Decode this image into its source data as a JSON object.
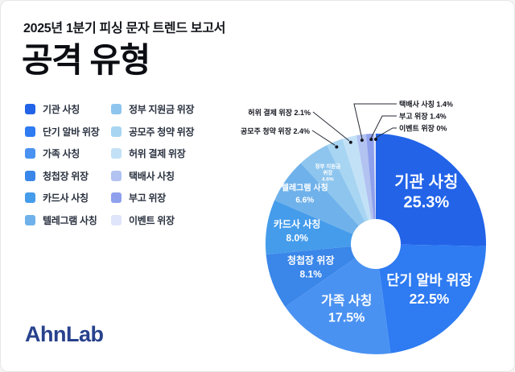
{
  "header": {
    "report_title": "2025년 1분기 피싱 문자 트렌드 보고서",
    "page_title": "공격 유형"
  },
  "footer": {
    "logo_text": "AhnLab"
  },
  "colors": {
    "accent_blue": "#2263e8",
    "text_dark": "#14161c",
    "logo_navy": "#28428d",
    "callout_line": "#262a34",
    "slice_label_text": "#ffffff"
  },
  "chart_data": {
    "type": "pie",
    "donut": true,
    "title": "공격 유형",
    "unit": "%",
    "legend_position": "left",
    "categories": [
      "기관 사칭",
      "단기 알바 위장",
      "가족 사칭",
      "청첩장 위장",
      "카드사 사칭",
      "텔레그램 사칭",
      "정부 지원금 위장",
      "공모주 청약 위장",
      "허위 결제 위장",
      "택배사 사칭",
      "부고 위장",
      "이벤트 위장"
    ],
    "values": [
      25.3,
      22.5,
      17.5,
      8.1,
      8.0,
      6.6,
      4.6,
      2.4,
      2.1,
      1.4,
      1.4,
      0
    ],
    "slices": [
      {
        "name": "기관 사칭",
        "value": 25.3,
        "display": "25.3%",
        "color": "#2263e8"
      },
      {
        "name": "단기 알바 위장",
        "value": 22.5,
        "display": "22.5%",
        "color": "#2e7bf2"
      },
      {
        "name": "가족 사칭",
        "value": 17.5,
        "display": "17.5%",
        "color": "#4a92f2"
      },
      {
        "name": "청첩장 위장",
        "value": 8.1,
        "display": "8.1%",
        "color": "#3a86e9"
      },
      {
        "name": "카드사 사칭",
        "value": 8.0,
        "display": "8.0%",
        "color": "#459ceb"
      },
      {
        "name": "텔레그램 사칭",
        "value": 6.6,
        "display": "6.6%",
        "color": "#6fb1ea"
      },
      {
        "name": "정부 지원금 위장",
        "value": 4.6,
        "display": "4.6%",
        "color": "#8dc5ee"
      },
      {
        "name": "공모주 청약 위장",
        "value": 2.4,
        "display": "2.4%",
        "color": "#a7d5f2"
      },
      {
        "name": "허위 결제 위장",
        "value": 2.1,
        "display": "2.1%",
        "color": "#c3e1f6"
      },
      {
        "name": "택배사 사칭",
        "value": 1.4,
        "display": "1.4%",
        "color": "#b2c2f1"
      },
      {
        "name": "부고 위장",
        "value": 1.4,
        "display": "1.4%",
        "color": "#8fa0ec"
      },
      {
        "name": "이벤트 위장",
        "value": 0,
        "display": "0%",
        "color": "#dfe5fa"
      }
    ]
  }
}
